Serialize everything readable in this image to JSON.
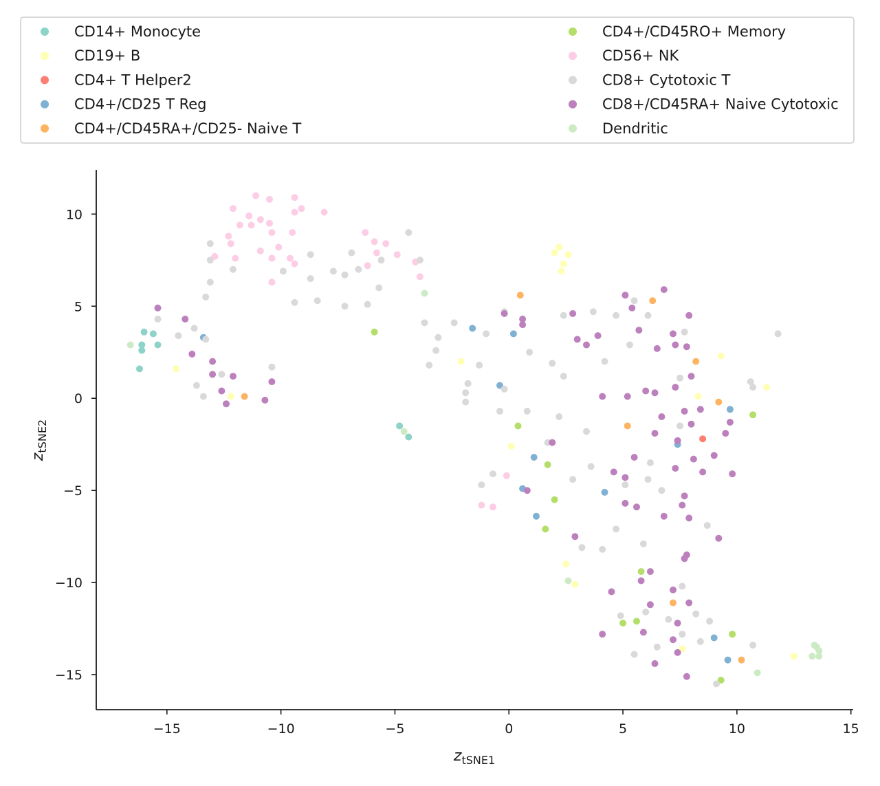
{
  "chart_data": {
    "type": "scatter",
    "xlabel": "z",
    "xlabel_sub": "tSNE1",
    "ylabel": "z",
    "ylabel_sub": "tSNE2",
    "xlim": [
      -18.1,
      15.1
    ],
    "ylim": [
      -16.9,
      12.4
    ],
    "xticks": [
      -15,
      -10,
      -5,
      0,
      5,
      10,
      15
    ],
    "yticks": [
      -15,
      -10,
      -5,
      0,
      5,
      10
    ],
    "xtick_labels": [
      "−15",
      "−10",
      "−5",
      "0",
      "5",
      "10",
      "15"
    ],
    "ytick_labels": [
      "−15",
      "−10",
      "−5",
      "0",
      "5",
      "10"
    ],
    "grid": false,
    "legend_position": "top",
    "series": [
      {
        "name": "CD14+ Monocyte",
        "color": "#8dd3c7",
        "points": [
          [
            -16.0,
            3.6
          ],
          [
            -15.6,
            3.5
          ],
          [
            -16.1,
            2.9
          ],
          [
            -15.4,
            2.9
          ],
          [
            -16.1,
            2.6
          ],
          [
            -16.2,
            1.6
          ],
          [
            -4.8,
            -1.5
          ],
          [
            -4.4,
            -2.1
          ]
        ]
      },
      {
        "name": "CD19+ B",
        "color": "#ffffb3",
        "points": [
          [
            -14.6,
            1.6
          ],
          [
            -12.2,
            0.1
          ],
          [
            2.0,
            7.9
          ],
          [
            2.2,
            8.2
          ],
          [
            2.4,
            7.3
          ],
          [
            2.6,
            7.8
          ],
          [
            2.3,
            6.9
          ],
          [
            -2.1,
            2.0
          ],
          [
            0.1,
            -2.6
          ],
          [
            8.3,
            0.1
          ],
          [
            9.3,
            2.3
          ],
          [
            11.3,
            0.6
          ],
          [
            2.5,
            -9.0
          ],
          [
            2.9,
            -10.1
          ],
          [
            7.6,
            -13.6
          ],
          [
            12.5,
            -14.0
          ]
        ]
      },
      {
        "name": "CD4+ T Helper2",
        "color": "#fb8072",
        "points": [
          [
            8.5,
            -2.2
          ]
        ]
      },
      {
        "name": "CD4+/CD25 T Reg",
        "color": "#80b1d3",
        "points": [
          [
            -13.4,
            3.3
          ],
          [
            -1.6,
            3.8
          ],
          [
            0.2,
            3.5
          ],
          [
            -0.4,
            0.7
          ],
          [
            7.4,
            -2.5
          ],
          [
            9.7,
            -0.6
          ],
          [
            1.1,
            -3.2
          ],
          [
            0.6,
            -4.9
          ],
          [
            4.2,
            -5.1
          ],
          [
            1.2,
            -6.4
          ],
          [
            9.0,
            -13.0
          ],
          [
            9.6,
            -14.2
          ]
        ]
      },
      {
        "name": "CD4+/CD45RA+/CD25- Naive T",
        "color": "#fdb462",
        "points": [
          [
            -11.6,
            0.1
          ],
          [
            0.5,
            5.6
          ],
          [
            6.3,
            5.3
          ],
          [
            8.2,
            2.0
          ],
          [
            9.2,
            -0.2
          ],
          [
            5.2,
            -1.5
          ],
          [
            7.2,
            -11.1
          ],
          [
            10.2,
            -14.2
          ]
        ]
      },
      {
        "name": "CD4+/CD45RO+ Memory",
        "color": "#b3de69",
        "points": [
          [
            -5.9,
            3.6
          ],
          [
            0.4,
            -1.5
          ],
          [
            1.7,
            -3.6
          ],
          [
            2.0,
            -5.5
          ],
          [
            1.6,
            -7.1
          ],
          [
            5.8,
            -9.4
          ],
          [
            10.7,
            -0.9
          ],
          [
            5.0,
            -12.2
          ],
          [
            5.6,
            -12.1
          ],
          [
            9.8,
            -12.8
          ],
          [
            9.3,
            -15.3
          ]
        ]
      },
      {
        "name": "CD56+ NK",
        "color": "#fccde5",
        "points": [
          [
            -11.1,
            11.0
          ],
          [
            -10.5,
            10.8
          ],
          [
            -9.4,
            10.9
          ],
          [
            -12.1,
            10.3
          ],
          [
            -9.1,
            10.3
          ],
          [
            -8.1,
            10.1
          ],
          [
            -9.4,
            10.1
          ],
          [
            -11.4,
            9.9
          ],
          [
            -10.9,
            9.7
          ],
          [
            -11.8,
            9.4
          ],
          [
            -11.3,
            9.4
          ],
          [
            -10.5,
            9.5
          ],
          [
            -12.3,
            8.8
          ],
          [
            -10.4,
            9.0
          ],
          [
            -9.5,
            9.0
          ],
          [
            -12.2,
            8.4
          ],
          [
            -10.1,
            8.2
          ],
          [
            -6.3,
            9.0
          ],
          [
            -5.9,
            8.5
          ],
          [
            -5.4,
            8.4
          ],
          [
            -12.9,
            7.7
          ],
          [
            -12.0,
            7.6
          ],
          [
            -10.9,
            8.0
          ],
          [
            -10.4,
            7.6
          ],
          [
            -9.6,
            7.6
          ],
          [
            -9.4,
            7.3
          ],
          [
            -5.8,
            7.9
          ],
          [
            -4.9,
            7.8
          ],
          [
            -6.2,
            7.2
          ],
          [
            -4.1,
            7.4
          ],
          [
            -3.9,
            6.6
          ],
          [
            -10.4,
            6.3
          ],
          [
            -1.2,
            -5.8
          ],
          [
            -0.7,
            -5.9
          ],
          [
            -0.1,
            -4.2
          ]
        ]
      },
      {
        "name": "CD8+ Cytotoxic T",
        "color": "#d9d9d9",
        "points": [
          [
            -13.1,
            8.4
          ],
          [
            -13.1,
            7.5
          ],
          [
            -13.1,
            6.3
          ],
          [
            -13.3,
            5.5
          ],
          [
            -12.1,
            7.0
          ],
          [
            -9.9,
            6.9
          ],
          [
            -8.7,
            7.8
          ],
          [
            -8.7,
            6.5
          ],
          [
            -7.7,
            6.9
          ],
          [
            -7.2,
            6.7
          ],
          [
            -6.9,
            7.9
          ],
          [
            -6.6,
            7.0
          ],
          [
            -5.6,
            7.5
          ],
          [
            -4.4,
            9.0
          ],
          [
            -3.9,
            7.5
          ],
          [
            -5.7,
            6.0
          ],
          [
            -9.4,
            5.2
          ],
          [
            -8.4,
            5.3
          ],
          [
            -7.2,
            5.0
          ],
          [
            -6.2,
            5.1
          ],
          [
            -15.4,
            4.3
          ],
          [
            -13.8,
            3.8
          ],
          [
            -14.5,
            3.4
          ],
          [
            -13.3,
            3.2
          ],
          [
            -3.7,
            4.1
          ],
          [
            -3.1,
            3.3
          ],
          [
            -3.2,
            2.6
          ],
          [
            -2.4,
            4.1
          ],
          [
            -1.0,
            3.5
          ],
          [
            -1.3,
            1.8
          ],
          [
            -3.5,
            1.8
          ],
          [
            -10.4,
            1.7
          ],
          [
            -12.6,
            1.3
          ],
          [
            -13.7,
            0.7
          ],
          [
            -13.4,
            0.1
          ],
          [
            -1.8,
            0.8
          ],
          [
            -1.9,
            0.3
          ],
          [
            -1.9,
            -0.2
          ],
          [
            -0.2,
            4.7
          ],
          [
            -0.2,
            0.5
          ],
          [
            -0.4,
            -0.7
          ],
          [
            0.8,
            -0.7
          ],
          [
            0.9,
            2.5
          ],
          [
            2.4,
            4.5
          ],
          [
            1.9,
            1.9
          ],
          [
            2.4,
            1.2
          ],
          [
            2.2,
            -1.0
          ],
          [
            3.7,
            4.7
          ],
          [
            4.2,
            2.0
          ],
          [
            4.7,
            4.5
          ],
          [
            5.3,
            2.9
          ],
          [
            5.5,
            5.3
          ],
          [
            6.1,
            4.5
          ],
          [
            7.7,
            3.6
          ],
          [
            7.5,
            1.1
          ],
          [
            10.6,
            0.9
          ],
          [
            10.7,
            0.6
          ],
          [
            11.8,
            3.5
          ],
          [
            3.4,
            -1.8
          ],
          [
            1.7,
            -2.4
          ],
          [
            2.8,
            -4.4
          ],
          [
            3.6,
            -3.7
          ],
          [
            6.2,
            -3.5
          ],
          [
            5.1,
            -4.7
          ],
          [
            6.1,
            -4.4
          ],
          [
            6.7,
            -5.0
          ],
          [
            7.5,
            -1.5
          ],
          [
            -1.2,
            -4.7
          ],
          [
            -0.7,
            -4.1
          ],
          [
            3.2,
            -8.1
          ],
          [
            4.1,
            -8.2
          ],
          [
            4.7,
            -7.1
          ],
          [
            5.9,
            -7.9
          ],
          [
            8.7,
            -6.9
          ],
          [
            7.6,
            -10.2
          ],
          [
            4.9,
            -11.8
          ],
          [
            6.0,
            -11.6
          ],
          [
            7.0,
            -12.0
          ],
          [
            8.2,
            -11.7
          ],
          [
            8.8,
            -12.1
          ],
          [
            7.6,
            -12.8
          ],
          [
            6.5,
            -13.5
          ],
          [
            5.5,
            -13.9
          ],
          [
            8.4,
            -13.2
          ],
          [
            10.7,
            -13.4
          ],
          [
            9.1,
            -15.5
          ]
        ]
      },
      {
        "name": "CD8+/CD45RA+ Naive Cytotoxic",
        "color": "#bc80bd",
        "points": [
          [
            -15.4,
            4.9
          ],
          [
            -14.2,
            4.3
          ],
          [
            -13.9,
            2.4
          ],
          [
            -13.0,
            2.0
          ],
          [
            -13.0,
            1.3
          ],
          [
            -12.1,
            1.2
          ],
          [
            -10.4,
            0.9
          ],
          [
            -12.6,
            0.4
          ],
          [
            -12.4,
            -0.3
          ],
          [
            -10.7,
            -0.1
          ],
          [
            -0.2,
            4.6
          ],
          [
            0.6,
            4.3
          ],
          [
            0.6,
            4.0
          ],
          [
            2.8,
            4.6
          ],
          [
            3.0,
            3.2
          ],
          [
            3.4,
            2.9
          ],
          [
            3.9,
            3.4
          ],
          [
            5.1,
            5.6
          ],
          [
            5.4,
            4.9
          ],
          [
            5.7,
            3.7
          ],
          [
            6.8,
            5.9
          ],
          [
            7.2,
            3.5
          ],
          [
            7.3,
            2.9
          ],
          [
            7.8,
            2.8
          ],
          [
            7.9,
            4.5
          ],
          [
            6.5,
            2.7
          ],
          [
            8.0,
            1.2
          ],
          [
            4.1,
            0.1
          ],
          [
            5.2,
            0.1
          ],
          [
            6.0,
            0.4
          ],
          [
            6.4,
            0.3
          ],
          [
            7.3,
            0.6
          ],
          [
            6.7,
            -1.0
          ],
          [
            7.7,
            -0.7
          ],
          [
            8.4,
            -0.6
          ],
          [
            8.0,
            -1.4
          ],
          [
            9.7,
            -1.3
          ],
          [
            9.5,
            -1.9
          ],
          [
            6.4,
            -1.9
          ],
          [
            7.4,
            -2.3
          ],
          [
            8.1,
            -3.3
          ],
          [
            9.0,
            -3.1
          ],
          [
            5.5,
            -3.2
          ],
          [
            7.3,
            -3.8
          ],
          [
            8.5,
            -4.0
          ],
          [
            9.8,
            -4.1
          ],
          [
            4.6,
            -4.0
          ],
          [
            5.1,
            -4.3
          ],
          [
            0.8,
            -5.0
          ],
          [
            7.7,
            -5.3
          ],
          [
            5.1,
            -5.7
          ],
          [
            5.6,
            -5.9
          ],
          [
            7.6,
            -5.8
          ],
          [
            1.9,
            -2.4
          ],
          [
            6.8,
            -6.4
          ],
          [
            7.9,
            -6.5
          ],
          [
            2.9,
            -7.5
          ],
          [
            9.2,
            -7.6
          ],
          [
            7.8,
            -8.5
          ],
          [
            7.7,
            -8.7
          ],
          [
            6.2,
            -9.4
          ],
          [
            5.8,
            -9.9
          ],
          [
            4.5,
            -10.5
          ],
          [
            7.2,
            -10.4
          ],
          [
            6.2,
            -11.2
          ],
          [
            7.9,
            -11.1
          ],
          [
            7.4,
            -12.2
          ],
          [
            4.1,
            -12.8
          ],
          [
            5.9,
            -12.7
          ],
          [
            7.2,
            -13.1
          ],
          [
            7.4,
            -13.8
          ],
          [
            6.4,
            -14.4
          ],
          [
            7.8,
            -15.1
          ]
        ]
      },
      {
        "name": "Dendritic",
        "color": "#ccebc5",
        "points": [
          [
            -16.6,
            2.9
          ],
          [
            -4.6,
            -1.8
          ],
          [
            -3.7,
            5.7
          ],
          [
            2.6,
            -9.9
          ],
          [
            10.9,
            -14.9
          ],
          [
            13.4,
            -13.4
          ],
          [
            13.5,
            -13.5
          ],
          [
            13.6,
            -13.7
          ],
          [
            13.3,
            -14.0
          ],
          [
            13.6,
            -14.0
          ]
        ]
      }
    ]
  }
}
